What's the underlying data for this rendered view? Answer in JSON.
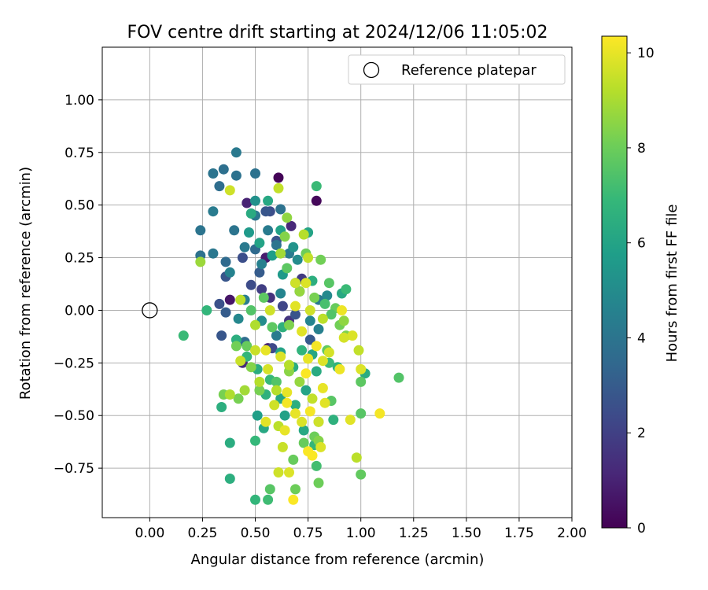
{
  "chart_data": {
    "type": "scatter",
    "title": "FOV centre drift starting at 2024/12/06 11:05:02",
    "xlabel": "Angular distance from reference (arcmin)",
    "ylabel": "Rotation from reference (arcmin)",
    "xlim": [
      -0.225,
      2.0
    ],
    "ylim": [
      -0.985,
      1.25
    ],
    "x_ticks": [
      0.0,
      0.25,
      0.5,
      0.75,
      1.0,
      1.25,
      1.5,
      1.75,
      2.0
    ],
    "x_tick_labels": [
      "0.00",
      "0.25",
      "0.50",
      "0.75",
      "1.00",
      "1.25",
      "1.50",
      "1.75",
      "2.00"
    ],
    "y_ticks": [
      -0.75,
      -0.5,
      -0.25,
      0.0,
      0.25,
      0.5,
      0.75,
      1.0
    ],
    "y_tick_labels": [
      "−0.75",
      "−0.50",
      "−0.25",
      "0.00",
      "0.25",
      "0.50",
      "0.75",
      "1.00"
    ],
    "grid": true,
    "legend": {
      "position": "top-right",
      "entries": [
        {
          "label": "Reference platepar",
          "marker": "open-circle"
        }
      ]
    },
    "reference_point": {
      "x": 0.0,
      "y": 0.0
    },
    "colorbar": {
      "label": "Hours from first FF file",
      "min": 0,
      "max": 10.35,
      "ticks": [
        0,
        2,
        4,
        6,
        8,
        10
      ],
      "tick_labels": [
        "0",
        "2",
        "4",
        "6",
        "8",
        "10"
      ],
      "colormap": "viridis",
      "stops": [
        "#440154",
        "#482878",
        "#3e4989",
        "#31688e",
        "#26828e",
        "#1f9e89",
        "#35b779",
        "#6ece58",
        "#b5de2b",
        "#fde725"
      ]
    },
    "series": [
      {
        "points": [
          [
            0.61,
            0.63,
            0.1
          ],
          [
            0.79,
            0.52,
            0.2
          ],
          [
            0.46,
            0.51,
            1.0
          ],
          [
            0.67,
            0.4,
            1.2
          ],
          [
            0.55,
            0.25,
            0.8
          ],
          [
            0.57,
            0.06,
            1.5
          ],
          [
            0.44,
            -0.25,
            1.3
          ],
          [
            0.38,
            0.05,
            0.6
          ],
          [
            0.66,
            -0.05,
            1.6
          ],
          [
            0.56,
            -0.18,
            0.9
          ],
          [
            0.72,
            0.15,
            1.8
          ],
          [
            0.53,
            0.1,
            1.9
          ],
          [
            0.57,
            0.47,
            2.5
          ],
          [
            0.55,
            0.47,
            2.8
          ],
          [
            0.44,
            0.25,
            2.5
          ],
          [
            0.36,
            0.16,
            2.8
          ],
          [
            0.33,
            0.03,
            2.6
          ],
          [
            0.36,
            -0.01,
            3.0
          ],
          [
            0.34,
            -0.12,
            2.8
          ],
          [
            0.48,
            0.12,
            2.4
          ],
          [
            0.6,
            0.33,
            2.7
          ],
          [
            0.63,
            0.02,
            2.2
          ],
          [
            0.69,
            -0.02,
            2.7
          ],
          [
            0.76,
            -0.14,
            2.9
          ],
          [
            0.58,
            -0.18,
            2.3
          ],
          [
            0.52,
            0.18,
            3.0
          ],
          [
            0.41,
            0.75,
            4.2
          ],
          [
            0.33,
            0.59,
            3.7
          ],
          [
            0.3,
            0.65,
            4.0
          ],
          [
            0.35,
            0.67,
            3.8
          ],
          [
            0.41,
            0.64,
            3.9
          ],
          [
            0.5,
            0.65,
            3.9
          ],
          [
            0.62,
            0.48,
            3.9
          ],
          [
            0.5,
            0.45,
            4.1
          ],
          [
            0.3,
            0.47,
            4.3
          ],
          [
            0.24,
            0.38,
            4.0
          ],
          [
            0.24,
            0.26,
            3.9
          ],
          [
            0.3,
            0.27,
            4.1
          ],
          [
            0.36,
            0.23,
            3.6
          ],
          [
            0.4,
            0.38,
            4.0
          ],
          [
            0.45,
            0.3,
            4.2
          ],
          [
            0.5,
            0.29,
            3.6
          ],
          [
            0.53,
            0.22,
            4.5
          ],
          [
            0.56,
            0.38,
            4.3
          ],
          [
            0.6,
            0.31,
            4.0
          ],
          [
            0.66,
            0.27,
            4.3
          ],
          [
            0.71,
            0.09,
            4.0
          ],
          [
            0.8,
            0.05,
            4.2
          ],
          [
            0.7,
            0.24,
            5.0
          ],
          [
            0.62,
            0.08,
            4.7
          ],
          [
            0.45,
            0.05,
            4.4
          ],
          [
            0.42,
            -0.04,
            4.8
          ],
          [
            0.45,
            -0.15,
            3.7
          ],
          [
            0.53,
            -0.05,
            5.0
          ],
          [
            0.6,
            -0.12,
            4.3
          ],
          [
            0.76,
            -0.05,
            4.7
          ],
          [
            0.8,
            -0.09,
            4.5
          ],
          [
            0.84,
            0.07,
            4.9
          ],
          [
            0.38,
            0.18,
            4.6
          ],
          [
            0.56,
            0.52,
            6.2
          ],
          [
            0.48,
            0.46,
            6.3
          ],
          [
            0.5,
            0.52,
            5.2
          ],
          [
            0.47,
            0.37,
            5.6
          ],
          [
            0.52,
            0.32,
            6.0
          ],
          [
            0.62,
            0.38,
            5.9
          ],
          [
            0.58,
            0.26,
            5.7
          ],
          [
            0.68,
            0.3,
            5.3
          ],
          [
            0.75,
            0.37,
            6.0
          ],
          [
            0.79,
            0.59,
            7.0
          ],
          [
            0.63,
            0.17,
            5.6
          ],
          [
            0.69,
            0.13,
            5.5
          ],
          [
            0.77,
            0.14,
            6.5
          ],
          [
            0.83,
            0.03,
            7.3
          ],
          [
            0.91,
            0.08,
            6.2
          ],
          [
            0.93,
            0.1,
            7.0
          ],
          [
            0.27,
            0.0,
            6.8
          ],
          [
            0.16,
            -0.12,
            7.0
          ],
          [
            0.41,
            -0.14,
            6.5
          ],
          [
            0.46,
            -0.22,
            6.8
          ],
          [
            0.51,
            -0.28,
            6.4
          ],
          [
            0.57,
            -0.33,
            6.9
          ],
          [
            0.62,
            -0.42,
            6.1
          ],
          [
            0.55,
            -0.4,
            6.6
          ],
          [
            0.51,
            -0.5,
            5.8
          ],
          [
            0.54,
            -0.56,
            6.2
          ],
          [
            0.64,
            -0.5,
            5.9
          ],
          [
            0.69,
            -0.45,
            6.5
          ],
          [
            0.74,
            -0.38,
            6.0
          ],
          [
            0.79,
            -0.29,
            6.3
          ],
          [
            0.85,
            -0.25,
            7.0
          ],
          [
            0.89,
            -0.27,
            6.7
          ],
          [
            0.73,
            -0.57,
            6.2
          ],
          [
            0.78,
            -0.64,
            6.8
          ],
          [
            0.79,
            -0.74,
            7.2
          ],
          [
            0.87,
            -0.52,
            6.6
          ],
          [
            0.5,
            -0.62,
            6.9
          ],
          [
            0.34,
            -0.46,
            6.5
          ],
          [
            0.38,
            -0.63,
            6.4
          ],
          [
            0.38,
            -0.8,
            6.5
          ],
          [
            0.5,
            -0.9,
            6.8
          ],
          [
            0.56,
            -0.9,
            7.1
          ],
          [
            0.62,
            -0.2,
            6.0
          ],
          [
            0.68,
            -0.27,
            6.4
          ],
          [
            0.72,
            -0.19,
            6.7
          ],
          [
            0.77,
            -0.21,
            6.1
          ],
          [
            1.02,
            -0.3,
            6.4
          ],
          [
            0.63,
            -0.08,
            6.6
          ],
          [
            0.54,
            0.06,
            7.7
          ],
          [
            0.48,
            0.0,
            7.5
          ],
          [
            0.65,
            0.2,
            7.7
          ],
          [
            0.74,
            0.27,
            8.0
          ],
          [
            0.81,
            0.24,
            8.1
          ],
          [
            0.85,
            0.13,
            7.6
          ],
          [
            0.88,
            0.01,
            7.9
          ],
          [
            0.9,
            -0.07,
            8.1
          ],
          [
            0.86,
            -0.02,
            7.5
          ],
          [
            0.84,
            -0.19,
            7.8
          ],
          [
            0.93,
            -0.12,
            8.3
          ],
          [
            1.0,
            -0.34,
            7.7
          ],
          [
            1.0,
            -0.49,
            7.6
          ],
          [
            1.18,
            -0.32,
            7.5
          ],
          [
            0.8,
            -0.53,
            7.8
          ],
          [
            0.86,
            -0.43,
            7.6
          ],
          [
            0.68,
            -0.71,
            7.9
          ],
          [
            0.8,
            -0.82,
            8.0
          ],
          [
            0.69,
            -0.85,
            8.0
          ],
          [
            0.57,
            -0.85,
            7.6
          ],
          [
            0.42,
            -0.42,
            8.2
          ],
          [
            0.41,
            -0.17,
            8.1
          ],
          [
            0.46,
            -0.17,
            7.9
          ],
          [
            0.48,
            -0.27,
            8.4
          ],
          [
            0.52,
            -0.38,
            8.2
          ],
          [
            0.6,
            -0.34,
            7.5
          ],
          [
            0.66,
            -0.29,
            8.5
          ],
          [
            0.71,
            -0.34,
            8.7
          ],
          [
            0.66,
            -0.07,
            8.3
          ],
          [
            0.58,
            -0.08,
            7.7
          ],
          [
            0.78,
            -0.6,
            8.0
          ],
          [
            0.73,
            -0.63,
            7.9
          ],
          [
            1.0,
            -0.78,
            7.8
          ],
          [
            0.8,
            -0.62,
            8.4
          ],
          [
            0.35,
            -0.4,
            8.2
          ],
          [
            0.64,
            0.35,
            8.4
          ],
          [
            0.62,
            0.27,
            8.9
          ],
          [
            0.65,
            0.44,
            8.6
          ],
          [
            0.71,
            0.09,
            8.7
          ],
          [
            0.78,
            0.06,
            8.2
          ],
          [
            0.92,
            -0.05,
            8.6
          ],
          [
            0.38,
            0.57,
            9.6
          ],
          [
            0.61,
            0.58,
            9.4
          ],
          [
            0.24,
            0.23,
            8.8
          ],
          [
            0.73,
            0.36,
            9.2
          ],
          [
            0.75,
            0.25,
            9.4
          ],
          [
            0.69,
            0.13,
            9.6
          ],
          [
            0.74,
            0.13,
            9.8
          ],
          [
            0.69,
            0.02,
            9.9
          ],
          [
            0.76,
            0.0,
            9.6
          ],
          [
            0.82,
            -0.04,
            9.3
          ],
          [
            0.91,
            0.0,
            10.1
          ],
          [
            0.96,
            -0.12,
            9.8
          ],
          [
            0.99,
            -0.19,
            9.4
          ],
          [
            0.92,
            -0.13,
            9.7
          ],
          [
            0.72,
            -0.1,
            9.9
          ],
          [
            0.79,
            -0.17,
            10.2
          ],
          [
            0.75,
            -0.23,
            10.0
          ],
          [
            0.82,
            -0.24,
            9.8
          ],
          [
            0.85,
            -0.2,
            9.7
          ],
          [
            0.9,
            -0.28,
            10.1
          ],
          [
            0.62,
            -0.22,
            9.8
          ],
          [
            0.66,
            -0.26,
            9.2
          ],
          [
            0.55,
            -0.19,
            10.0
          ],
          [
            0.5,
            -0.19,
            9.5
          ],
          [
            0.43,
            -0.24,
            9.5
          ],
          [
            0.56,
            -0.28,
            9.7
          ],
          [
            0.6,
            -0.38,
            9.2
          ],
          [
            0.65,
            -0.39,
            10.0
          ],
          [
            0.69,
            -0.49,
            10.0
          ],
          [
            0.72,
            -0.53,
            9.8
          ],
          [
            0.76,
            -0.48,
            10.2
          ],
          [
            0.55,
            -0.53,
            9.9
          ],
          [
            0.61,
            -0.55,
            9.3
          ],
          [
            0.59,
            -0.45,
            9.6
          ],
          [
            0.63,
            -0.65,
            9.5
          ],
          [
            0.66,
            -0.77,
            9.8
          ],
          [
            0.75,
            -0.67,
            10.3
          ],
          [
            0.77,
            -0.69,
            10.3
          ],
          [
            0.81,
            -0.65,
            9.8
          ],
          [
            0.82,
            -0.37,
            10.0
          ],
          [
            0.83,
            -0.44,
            9.9
          ],
          [
            0.8,
            -0.53,
            9.6
          ],
          [
            0.95,
            -0.52,
            9.9
          ],
          [
            0.98,
            -0.7,
            9.3
          ],
          [
            1.0,
            -0.28,
            9.8
          ],
          [
            1.09,
            -0.49,
            10.2
          ],
          [
            0.61,
            -0.77,
            9.6
          ],
          [
            0.68,
            -0.9,
            10.3
          ],
          [
            0.77,
            -0.42,
            9.4
          ],
          [
            0.52,
            -0.34,
            9.2
          ],
          [
            0.45,
            -0.38,
            8.9
          ],
          [
            0.38,
            -0.4,
            9.1
          ],
          [
            0.43,
            0.05,
            9.3
          ],
          [
            0.5,
            -0.07,
            9.1
          ],
          [
            0.57,
            0.0,
            9.6
          ],
          [
            0.74,
            -0.3,
            10.3
          ],
          [
            0.65,
            -0.44,
            10.2
          ],
          [
            0.64,
            -0.57,
            10.0
          ]
        ]
      }
    ]
  }
}
